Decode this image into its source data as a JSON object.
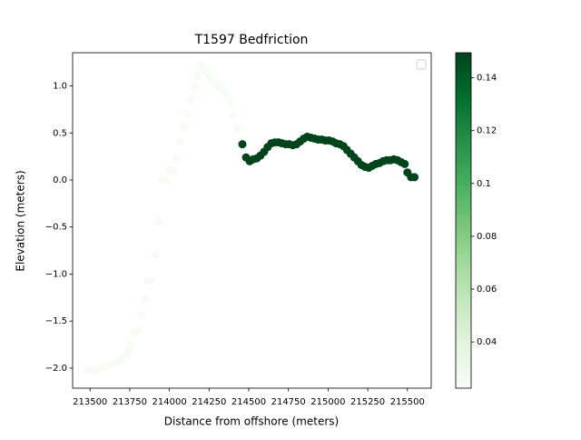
{
  "chart_data": {
    "type": "scatter",
    "title": "T1597 Bedfriction",
    "x_label": "Distance from offshore (meters)",
    "y_label": "Elevation (meters)",
    "x": [
      213489,
      213523,
      213545,
      213574,
      213602,
      213631,
      213659,
      213688,
      213716,
      213739,
      213756,
      213778,
      213801,
      213824,
      213847,
      213864,
      213886,
      213909,
      213932,
      213955,
      213977,
      214000,
      214023,
      214045,
      214068,
      214091,
      214114,
      214136,
      214159,
      214176,
      214199,
      214222,
      214244,
      214267,
      214290,
      214313,
      214335,
      214358,
      214381,
      214403,
      214432,
      214460,
      214483,
      214506,
      214528,
      214551,
      214574,
      214597,
      214619,
      214642,
      214665,
      214688,
      214710,
      214733,
      214756,
      214778,
      214801,
      214824,
      214847,
      214869,
      214892,
      214915,
      214938,
      214960,
      214983,
      215006,
      215028,
      215051,
      215074,
      215097,
      215119,
      215142,
      215165,
      215188,
      215210,
      215233,
      215256,
      215278,
      215301,
      215324,
      215347,
      215369,
      215392,
      215415,
      215438,
      215460,
      215483,
      215500,
      215523,
      215545
    ],
    "y": [
      -2.02,
      -2.03,
      -2.02,
      -1.99,
      -1.97,
      -1.96,
      -1.94,
      -1.91,
      -1.88,
      -1.82,
      -1.75,
      -1.61,
      -1.61,
      -1.44,
      -1.27,
      -1.07,
      -1.07,
      -0.8,
      -0.44,
      0.0,
      0.0,
      0.1,
      0.1,
      0.23,
      0.41,
      0.57,
      0.7,
      0.86,
      0.99,
      1.11,
      1.21,
      1.18,
      1.12,
      1.07,
      1.03,
      1.0,
      0.97,
      0.91,
      0.82,
      0.69,
      0.55,
      0.38,
      0.24,
      0.2,
      0.22,
      0.23,
      0.26,
      0.3,
      0.35,
      0.39,
      0.4,
      0.4,
      0.39,
      0.38,
      0.38,
      0.37,
      0.38,
      0.41,
      0.44,
      0.46,
      0.45,
      0.44,
      0.43,
      0.43,
      0.42,
      0.42,
      0.41,
      0.39,
      0.38,
      0.36,
      0.32,
      0.28,
      0.24,
      0.2,
      0.16,
      0.14,
      0.13,
      0.15,
      0.17,
      0.18,
      0.2,
      0.21,
      0.21,
      0.22,
      0.21,
      0.19,
      0.17,
      0.08,
      0.03,
      0.03
    ],
    "c": [
      0.0225,
      0.0225,
      0.0225,
      0.0225,
      0.0225,
      0.0225,
      0.0225,
      0.0225,
      0.0225,
      0.0225,
      0.0225,
      0.0225,
      0.0225,
      0.0225,
      0.0225,
      0.0225,
      0.0225,
      0.0225,
      0.0225,
      0.0225,
      0.0225,
      0.0225,
      0.0225,
      0.0225,
      0.0225,
      0.0225,
      0.0225,
      0.0225,
      0.0225,
      0.0225,
      0.0225,
      0.0225,
      0.0225,
      0.0225,
      0.0225,
      0.0225,
      0.0225,
      0.0225,
      0.0225,
      0.0225,
      0.0225,
      0.1495,
      0.1495,
      0.1495,
      0.1495,
      0.1495,
      0.1495,
      0.1495,
      0.1495,
      0.1495,
      0.1495,
      0.1495,
      0.1495,
      0.1495,
      0.1495,
      0.1495,
      0.1495,
      0.1495,
      0.1495,
      0.1495,
      0.1495,
      0.1495,
      0.1495,
      0.1495,
      0.1495,
      0.1495,
      0.1495,
      0.1495,
      0.1495,
      0.1495,
      0.1495,
      0.1495,
      0.1495,
      0.1495,
      0.1495,
      0.1495,
      0.1495,
      0.1495,
      0.1495,
      0.1495,
      0.1495,
      0.1495,
      0.1495,
      0.1495,
      0.1495,
      0.1495,
      0.1495,
      0.1495,
      0.1495,
      0.1495
    ],
    "colormap": [
      "#f7fcf5",
      "#e5f5e0",
      "#c7e9c0",
      "#a1d99b",
      "#74c476",
      "#41ab5d",
      "#238b45",
      "#006d2c",
      "#00441b"
    ],
    "clim": [
      0.0225,
      0.1495
    ],
    "cticks": [
      0.04,
      0.06,
      0.08,
      0.1,
      0.12,
      0.14
    ],
    "xlim": [
      213390,
      215650
    ],
    "xticks": [
      213500,
      213750,
      214000,
      214250,
      214500,
      214750,
      215000,
      215250,
      215500
    ],
    "ylim": [
      -2.213,
      1.353
    ],
    "yticks": [
      {
        "value": -2,
        "label": "−2.0"
      },
      {
        "value": -1.5,
        "label": "−1.5"
      },
      {
        "value": -1,
        "label": "−1.0"
      },
      {
        "value": -0.5,
        "label": "−0.5"
      },
      {
        "value": 0,
        "label": "0.0"
      },
      {
        "value": 0.5,
        "label": "0.5"
      },
      {
        "value": 1,
        "label": "1.0"
      }
    ]
  }
}
